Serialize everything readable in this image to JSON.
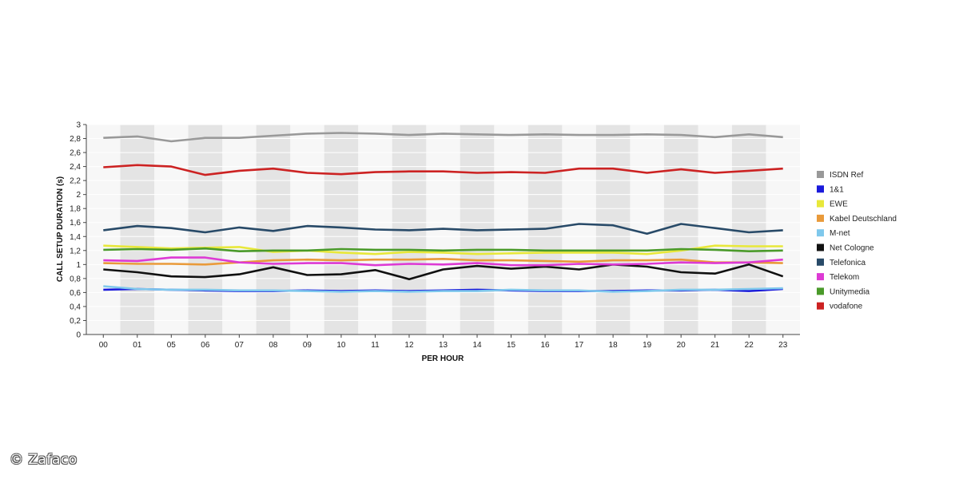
{
  "chart_data": {
    "type": "line",
    "xlabel": "PER HOUR",
    "ylabel": "CALL SETUP DURATION (s)",
    "categories": [
      "00",
      "01",
      "05",
      "06",
      "07",
      "08",
      "09",
      "10",
      "11",
      "12",
      "13",
      "14",
      "15",
      "16",
      "17",
      "18",
      "19",
      "20",
      "21",
      "22",
      "23"
    ],
    "ylim": [
      0,
      3
    ],
    "yticks": [
      "0",
      "0,2",
      "0,4",
      "0,6",
      "0,8",
      "1",
      "1,2",
      "1,4",
      "1,6",
      "1,8",
      "2",
      "2,2",
      "2,4",
      "2,6",
      "2,8",
      "3"
    ],
    "grid": true,
    "legend_position": "right",
    "series": [
      {
        "name": "ISDN Ref",
        "color": "#999999",
        "values": [
          2.81,
          2.83,
          2.76,
          2.81,
          2.81,
          2.84,
          2.87,
          2.88,
          2.87,
          2.85,
          2.87,
          2.86,
          2.85,
          2.86,
          2.85,
          2.85,
          2.86,
          2.85,
          2.82,
          2.86,
          2.82
        ]
      },
      {
        "name": "1&1",
        "color": "#1a1adb",
        "values": [
          0.64,
          0.65,
          0.64,
          0.63,
          0.62,
          0.62,
          0.63,
          0.62,
          0.63,
          0.62,
          0.63,
          0.64,
          0.63,
          0.62,
          0.62,
          0.62,
          0.63,
          0.63,
          0.64,
          0.62,
          0.65
        ]
      },
      {
        "name": "EWE",
        "color": "#e8e83a",
        "values": [
          1.27,
          1.25,
          1.23,
          1.24,
          1.25,
          1.18,
          1.2,
          1.17,
          1.15,
          1.18,
          1.17,
          1.15,
          1.16,
          1.17,
          1.17,
          1.17,
          1.15,
          1.2,
          1.27,
          1.26,
          1.26
        ]
      },
      {
        "name": "Kabel Deutschland",
        "color": "#e99a3a",
        "values": [
          1.02,
          1.01,
          1.01,
          1.0,
          1.03,
          1.06,
          1.07,
          1.06,
          1.07,
          1.07,
          1.08,
          1.06,
          1.06,
          1.05,
          1.04,
          1.06,
          1.06,
          1.07,
          1.03,
          1.03,
          1.02
        ]
      },
      {
        "name": "M-net",
        "color": "#7fc8ec",
        "values": [
          0.69,
          0.65,
          0.64,
          0.64,
          0.63,
          0.63,
          0.62,
          0.61,
          0.62,
          0.61,
          0.62,
          0.62,
          0.64,
          0.63,
          0.63,
          0.61,
          0.62,
          0.64,
          0.64,
          0.65,
          0.66
        ]
      },
      {
        "name": "Net Cologne",
        "color": "#111111",
        "values": [
          0.93,
          0.89,
          0.83,
          0.82,
          0.86,
          0.96,
          0.85,
          0.86,
          0.92,
          0.79,
          0.93,
          0.98,
          0.94,
          0.97,
          0.93,
          1.0,
          0.97,
          0.89,
          0.87,
          1.0,
          0.83
        ]
      },
      {
        "name": "Telefonica",
        "color": "#284a68",
        "values": [
          1.49,
          1.55,
          1.52,
          1.46,
          1.53,
          1.48,
          1.55,
          1.53,
          1.5,
          1.49,
          1.51,
          1.49,
          1.5,
          1.51,
          1.58,
          1.56,
          1.44,
          1.58,
          1.52,
          1.46,
          1.49
        ]
      },
      {
        "name": "Telekom",
        "color": "#dd3ad4",
        "values": [
          1.06,
          1.05,
          1.1,
          1.1,
          1.03,
          1.01,
          1.02,
          1.02,
          0.99,
          1.01,
          1.0,
          1.02,
          0.99,
          0.99,
          1.01,
          1.0,
          1.01,
          1.03,
          1.02,
          1.03,
          1.07
        ]
      },
      {
        "name": "Unitymedia",
        "color": "#4a9a2a",
        "values": [
          1.21,
          1.22,
          1.21,
          1.23,
          1.19,
          1.2,
          1.2,
          1.22,
          1.21,
          1.21,
          1.2,
          1.21,
          1.21,
          1.2,
          1.2,
          1.2,
          1.2,
          1.22,
          1.21,
          1.19,
          1.2
        ]
      },
      {
        "name": "vodafone",
        "color": "#cc2222",
        "values": [
          2.39,
          2.42,
          2.4,
          2.28,
          2.34,
          2.37,
          2.31,
          2.29,
          2.32,
          2.33,
          2.33,
          2.31,
          2.32,
          2.31,
          2.37,
          2.37,
          2.31,
          2.36,
          2.31,
          2.34,
          2.37
        ]
      }
    ]
  },
  "watermark": "© Zafaco"
}
